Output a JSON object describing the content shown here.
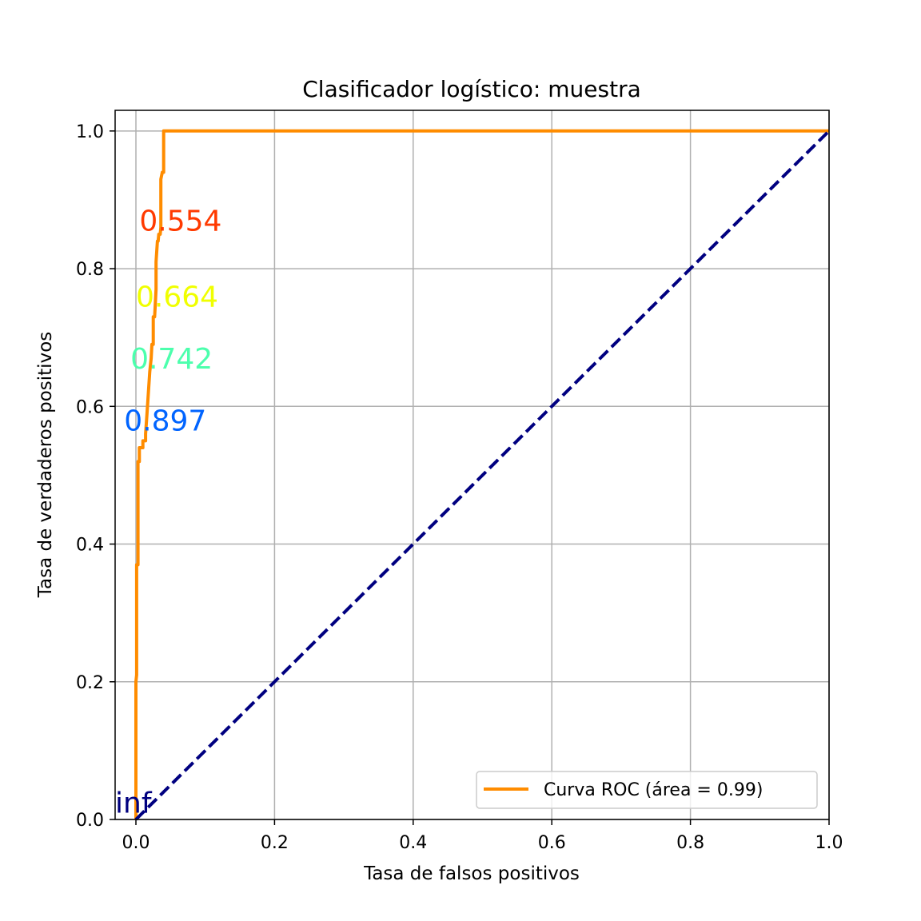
{
  "chart_data": {
    "type": "line",
    "title": "Clasificador logístico: muestra",
    "xlabel": "Tasa de falsos positivos",
    "ylabel": "Tasa de verdaderos positivos",
    "xlim": [
      -0.03,
      1.0
    ],
    "ylim": [
      0.0,
      1.03
    ],
    "grid": true,
    "legend_position": "lower-right",
    "x_ticks": [
      "0.0",
      "0.2",
      "0.4",
      "0.6",
      "0.8",
      "1.0"
    ],
    "y_ticks": [
      "0.0",
      "0.2",
      "0.4",
      "0.6",
      "0.8",
      "1.0"
    ],
    "series": [
      {
        "name": "Curva ROC (área = 0.99)",
        "color": "#ff8c00",
        "style": "solid",
        "x": [
          0.0,
          0.0,
          0.0,
          0.0,
          0.001,
          0.001,
          0.003,
          0.003,
          0.005,
          0.005,
          0.007,
          0.007,
          0.01,
          0.01,
          0.014,
          0.014,
          0.016,
          0.018,
          0.02,
          0.022,
          0.023,
          0.025,
          0.025,
          0.027,
          0.029,
          0.029,
          0.031,
          0.032,
          0.033,
          0.035,
          0.036,
          0.036,
          0.038,
          0.038,
          0.04,
          0.04,
          1.0
        ],
        "y": [
          0.0,
          0.05,
          0.1,
          0.2,
          0.21,
          0.37,
          0.37,
          0.52,
          0.52,
          0.54,
          0.54,
          0.54,
          0.54,
          0.55,
          0.55,
          0.56,
          0.59,
          0.62,
          0.65,
          0.67,
          0.69,
          0.69,
          0.73,
          0.73,
          0.77,
          0.81,
          0.84,
          0.84,
          0.85,
          0.85,
          0.86,
          0.93,
          0.94,
          0.94,
          0.94,
          1.0,
          1.0
        ]
      },
      {
        "name": "",
        "color": "#000080",
        "style": "dashed",
        "x": [
          0.0,
          1.0
        ],
        "y": [
          0.0,
          1.0
        ]
      }
    ],
    "annotations": [
      {
        "text": "0.554",
        "x": 0.005,
        "y": 0.855,
        "color": "#ff3a00"
      },
      {
        "text": "0.664",
        "x": 0.0,
        "y": 0.745,
        "color": "#f0ff00"
      },
      {
        "text": "0.742",
        "x": -0.008,
        "y": 0.655,
        "color": "#4cffad"
      },
      {
        "text": "0.897",
        "x": -0.017,
        "y": 0.565,
        "color": "#0064ff"
      },
      {
        "text": "inf",
        "x": -0.03,
        "y": 0.01,
        "color": "#00007f"
      }
    ]
  }
}
